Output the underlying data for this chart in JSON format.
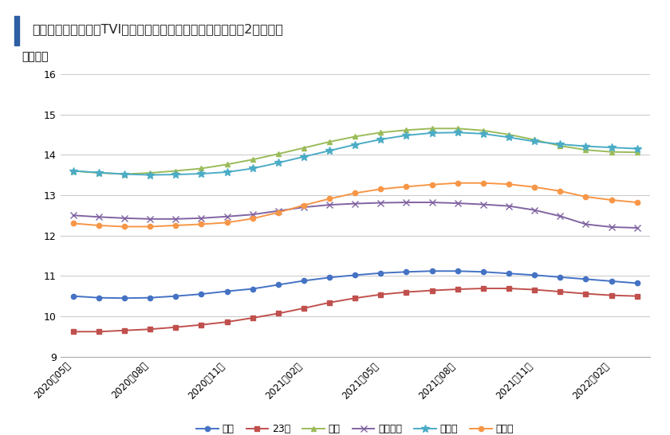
{
  "title": "図　首都圏　空室率TVI（タス空室インデックス）　（過去2年推移）",
  "ylabel": "ポイント",
  "ylim": [
    9,
    16
  ],
  "yticks": [
    9,
    10,
    11,
    12,
    13,
    14,
    15,
    16
  ],
  "x_labels": [
    "2020年05月",
    "2020年08月",
    "2020年11月",
    "2021年02月",
    "2021年05月",
    "2021年08月",
    "2021年11月",
    "2022年02月"
  ],
  "x_indices": [
    0,
    3,
    6,
    9,
    12,
    15,
    18,
    21
  ],
  "series_order": [
    "全域",
    "23区",
    "市部",
    "神奈川県",
    "埼玉県",
    "千葉県"
  ],
  "series": {
    "全域": {
      "color": "#4472C4",
      "marker": "o",
      "markersize": 5,
      "values": [
        10.5,
        10.46,
        10.45,
        10.46,
        10.5,
        10.55,
        10.62,
        10.68,
        10.78,
        10.88,
        10.96,
        11.02,
        11.07,
        11.1,
        11.12,
        11.12,
        11.1,
        11.06,
        11.02,
        10.97,
        10.92,
        10.87,
        10.82
      ]
    },
    "23区": {
      "color": "#C0504D",
      "marker": "s",
      "markersize": 5,
      "values": [
        9.62,
        9.62,
        9.65,
        9.68,
        9.73,
        9.79,
        9.86,
        9.96,
        10.07,
        10.2,
        10.34,
        10.45,
        10.54,
        10.6,
        10.64,
        10.67,
        10.69,
        10.69,
        10.66,
        10.61,
        10.56,
        10.52,
        10.5
      ]
    },
    "市部": {
      "color": "#9BBB59",
      "marker": "^",
      "markersize": 6,
      "values": [
        13.6,
        13.55,
        13.52,
        13.55,
        13.6,
        13.66,
        13.76,
        13.88,
        14.02,
        14.17,
        14.32,
        14.45,
        14.55,
        14.61,
        14.65,
        14.65,
        14.6,
        14.5,
        14.37,
        14.22,
        14.12,
        14.07,
        14.06
      ]
    },
    "神奈川県": {
      "color": "#8064A2",
      "marker": "x",
      "markersize": 6,
      "values": [
        12.5,
        12.46,
        12.43,
        12.41,
        12.41,
        12.43,
        12.47,
        12.52,
        12.61,
        12.7,
        12.76,
        12.79,
        12.81,
        12.82,
        12.82,
        12.8,
        12.77,
        12.73,
        12.63,
        12.48,
        12.28,
        12.21,
        12.19
      ]
    },
    "埼玉県": {
      "color": "#4BACC6",
      "marker": "*",
      "markersize": 7,
      "values": [
        13.6,
        13.56,
        13.52,
        13.5,
        13.51,
        13.53,
        13.57,
        13.66,
        13.8,
        13.95,
        14.1,
        14.25,
        14.38,
        14.48,
        14.54,
        14.55,
        14.52,
        14.43,
        14.33,
        14.26,
        14.21,
        14.18,
        14.15
      ]
    },
    "千葉県": {
      "color": "#F79646",
      "marker": "o",
      "markersize": 5,
      "values": [
        12.3,
        12.25,
        12.22,
        12.22,
        12.25,
        12.28,
        12.32,
        12.42,
        12.57,
        12.75,
        12.91,
        13.05,
        13.15,
        13.21,
        13.26,
        13.3,
        13.3,
        13.27,
        13.2,
        13.1,
        12.96,
        12.88,
        12.82
      ]
    }
  },
  "background_color": "#FFFFFF",
  "plot_bg_color": "#FFFFFF",
  "grid_color": "#CCCCCC",
  "title_bar_color": "#2E5FA3",
  "n_points": 23
}
